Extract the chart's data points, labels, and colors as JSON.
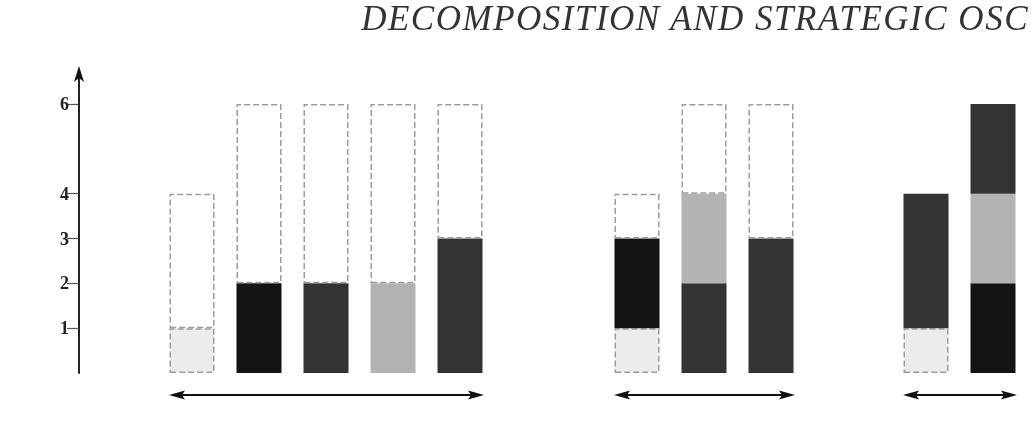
{
  "chart_data": [
    {
      "type": "bar",
      "stacked": true,
      "categories": [
        null,
        null,
        null,
        null,
        null
      ],
      "series": [
        {
          "color": "#ececec",
          "line_style": "dashed",
          "values": [
            1,
            null,
            null,
            null,
            null
          ]
        },
        {
          "color": "#141414",
          "values": [
            null,
            2,
            null,
            null,
            null
          ]
        },
        {
          "color": "#333333",
          "values": [
            null,
            null,
            2,
            null,
            3
          ]
        },
        {
          "color": "#b3b3b3",
          "values": [
            null,
            null,
            null,
            2,
            null
          ]
        },
        {
          "color": "#ffffff",
          "line_style": "dashed",
          "values": [
            3,
            4,
            4,
            4,
            3
          ]
        }
      ],
      "ylim": [
        0,
        6
      ],
      "yticks": [
        1,
        2,
        3,
        4,
        6
      ],
      "tick_labels": "y"
    },
    {
      "type": "bar",
      "title": "DECOMPOSITION AND STRATEGIC OSC",
      "stacked": true,
      "categories": [
        null,
        null,
        null
      ],
      "series": [
        {
          "color": "#ececec",
          "line_style": "dashed",
          "values": [
            1,
            null,
            null
          ]
        },
        {
          "color": "#141414",
          "values": [
            2,
            null,
            null
          ]
        },
        {
          "color": "#333333",
          "values": [
            null,
            2,
            3
          ]
        },
        {
          "color": "#b3b3b3",
          "values": [
            null,
            2,
            null
          ]
        },
        {
          "color": "#ffffff",
          "line_style": "dashed",
          "values": [
            1,
            2,
            3
          ]
        }
      ],
      "ylim": [
        0,
        6
      ],
      "tick_labels": false
    },
    {
      "type": "bar",
      "stacked": true,
      "categories": [
        null,
        null
      ],
      "series": [
        {
          "color": "#ececec",
          "line_style": "dashed",
          "values": [
            1,
            null
          ]
        },
        {
          "color": "#141414",
          "values": [
            null,
            2
          ]
        },
        {
          "color": "#b3b3b3",
          "values": [
            null,
            2
          ]
        },
        {
          "color": "#333333",
          "values": [
            3,
            2
          ]
        }
      ],
      "ylim": [
        0,
        6
      ],
      "tick_labels": false
    }
  ]
}
